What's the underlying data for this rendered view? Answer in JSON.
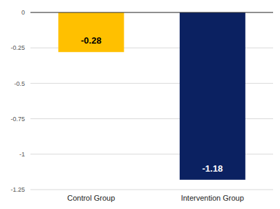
{
  "chart_data": {
    "type": "bar",
    "categories": [
      "Control Group",
      "Intervention Group"
    ],
    "values": [
      -0.28,
      -1.18
    ],
    "colors": [
      "#FFC000",
      "#0B2161"
    ],
    "ylim": [
      -1.25,
      0
    ],
    "yticks": [
      0,
      -0.25,
      -0.5,
      -0.75,
      -1,
      -1.25
    ],
    "grid": true,
    "data_labels": true
  }
}
